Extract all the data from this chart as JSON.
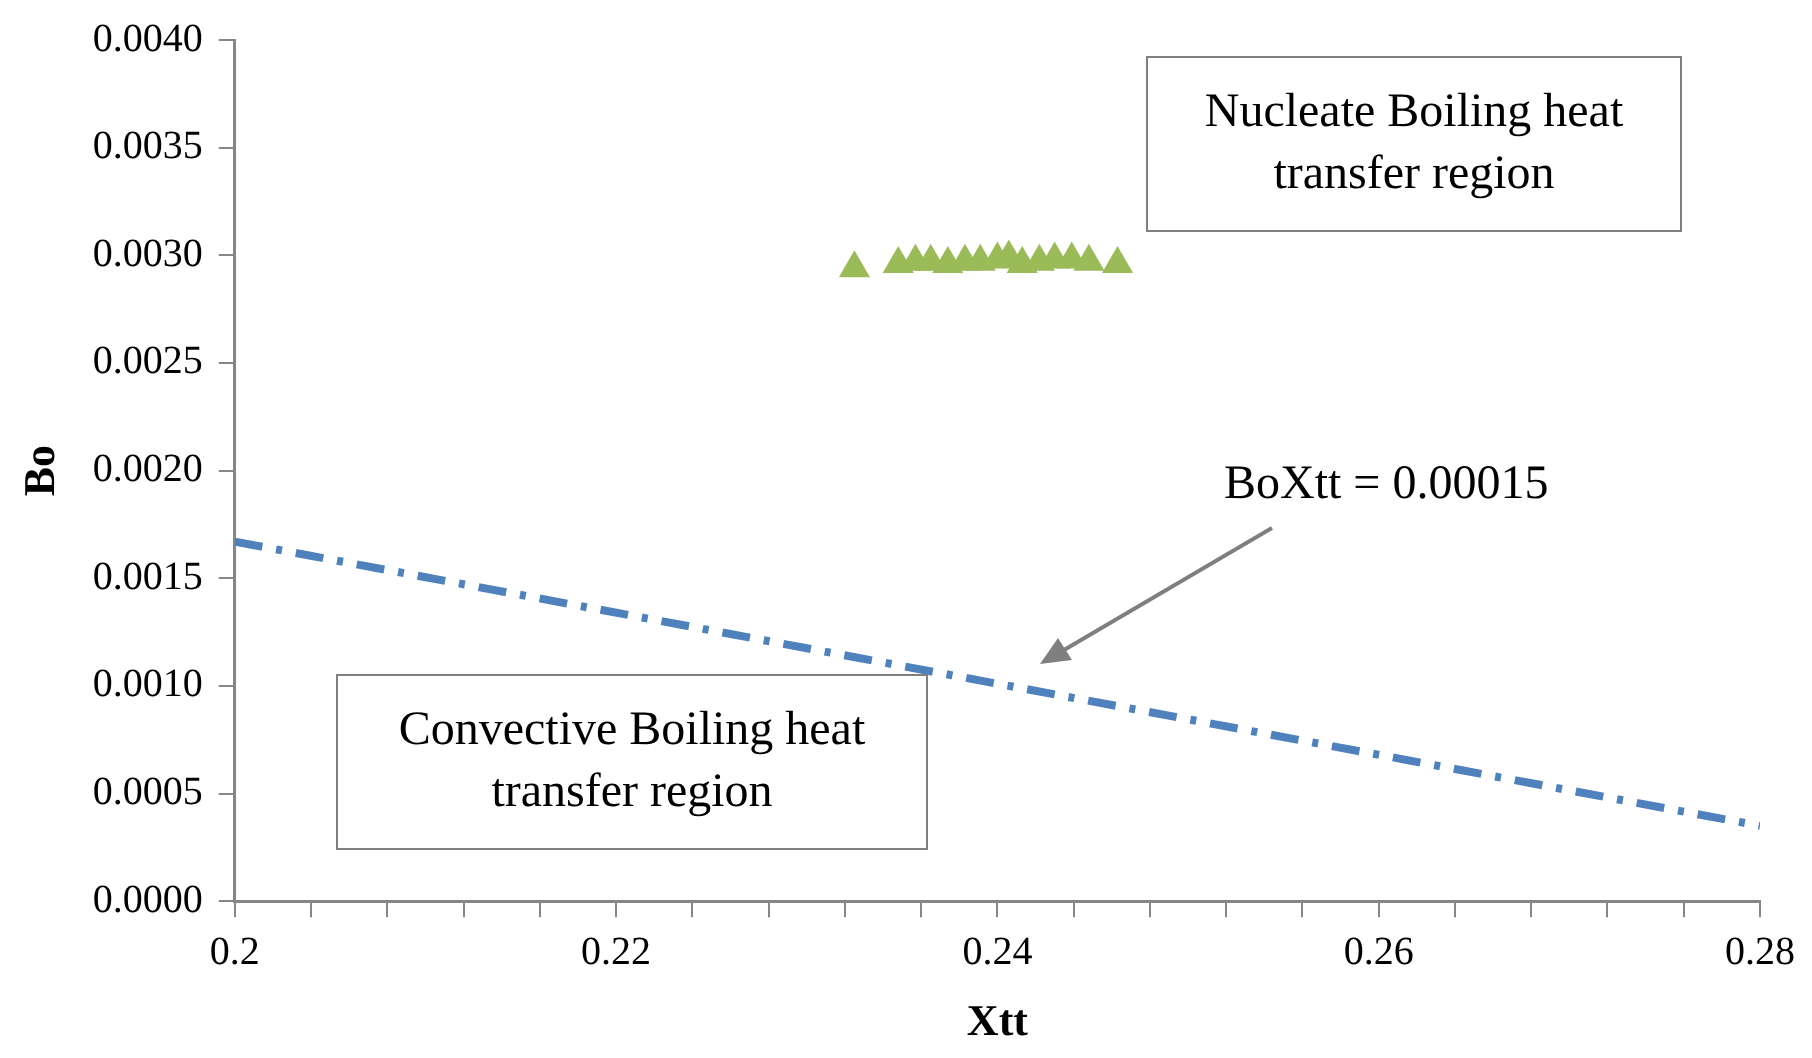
{
  "chart_data": {
    "type": "scatter",
    "xlabel": "Xtt",
    "ylabel": "Bo",
    "xlim": [
      0.2,
      0.28
    ],
    "ylim": [
      0,
      0.004
    ],
    "xticks": [
      0.2,
      {
        "value": 0.204,
        "label": null
      },
      {
        "value": 0.208,
        "label": null
      },
      {
        "value": 0.212,
        "label": null
      },
      {
        "value": 0.216,
        "label": null
      },
      0.22,
      {
        "value": 0.224,
        "label": null
      },
      {
        "value": 0.228,
        "label": null
      },
      {
        "value": 0.232,
        "label": null
      },
      {
        "value": 0.236,
        "label": null
      },
      0.24,
      {
        "value": 0.244,
        "label": null
      },
      {
        "value": 0.248,
        "label": null
      },
      {
        "value": 0.252,
        "label": null
      },
      {
        "value": 0.256,
        "label": null
      },
      0.26,
      {
        "value": 0.264,
        "label": null
      },
      {
        "value": 0.268,
        "label": null
      },
      {
        "value": 0.272,
        "label": null
      },
      {
        "value": 0.276,
        "label": null
      },
      0.28
    ],
    "yticks": [
      {
        "value": 0,
        "label": "0.0000"
      },
      {
        "value": 0.0005,
        "label": "0.0005"
      },
      {
        "value": 0.001,
        "label": "0.0010"
      },
      {
        "value": 0.0015,
        "label": "0.0015"
      },
      {
        "value": 0.002,
        "label": "0.0020"
      },
      {
        "value": 0.0025,
        "label": "0.0025"
      },
      {
        "value": 0.003,
        "label": "0.0030"
      },
      {
        "value": 0.0035,
        "label": "0.0035"
      },
      {
        "value": 0.004,
        "label": "0.0040"
      }
    ],
    "grid": false,
    "legend": false,
    "series": [
      {
        "type": "scatter",
        "color": "#9bbb59",
        "marker": "triangle",
        "x": [
          0.2325,
          0.2348,
          0.2357,
          0.2365,
          0.2374,
          0.2383,
          0.2391,
          0.24,
          0.2406,
          0.2413,
          0.2422,
          0.243,
          0.2439,
          0.2448,
          0.2463
        ],
        "values": [
          0.00294,
          0.00296,
          0.00297,
          0.00297,
          0.00296,
          0.00297,
          0.00297,
          0.00298,
          0.00299,
          0.00296,
          0.00297,
          0.00298,
          0.00298,
          0.00297,
          0.00296
        ]
      },
      {
        "type": "line",
        "color": "#4f81bd",
        "marker": "none",
        "line_style": "dashed",
        "x": [
          0.2,
          0.28
        ],
        "values": [
          0.00167,
          0.00035
        ]
      }
    ],
    "annotations": [
      "BoXtt = 0.00015",
      "Nucleate Boiling heat transfer region",
      "Convective Boiling heat transfer region"
    ]
  }
}
